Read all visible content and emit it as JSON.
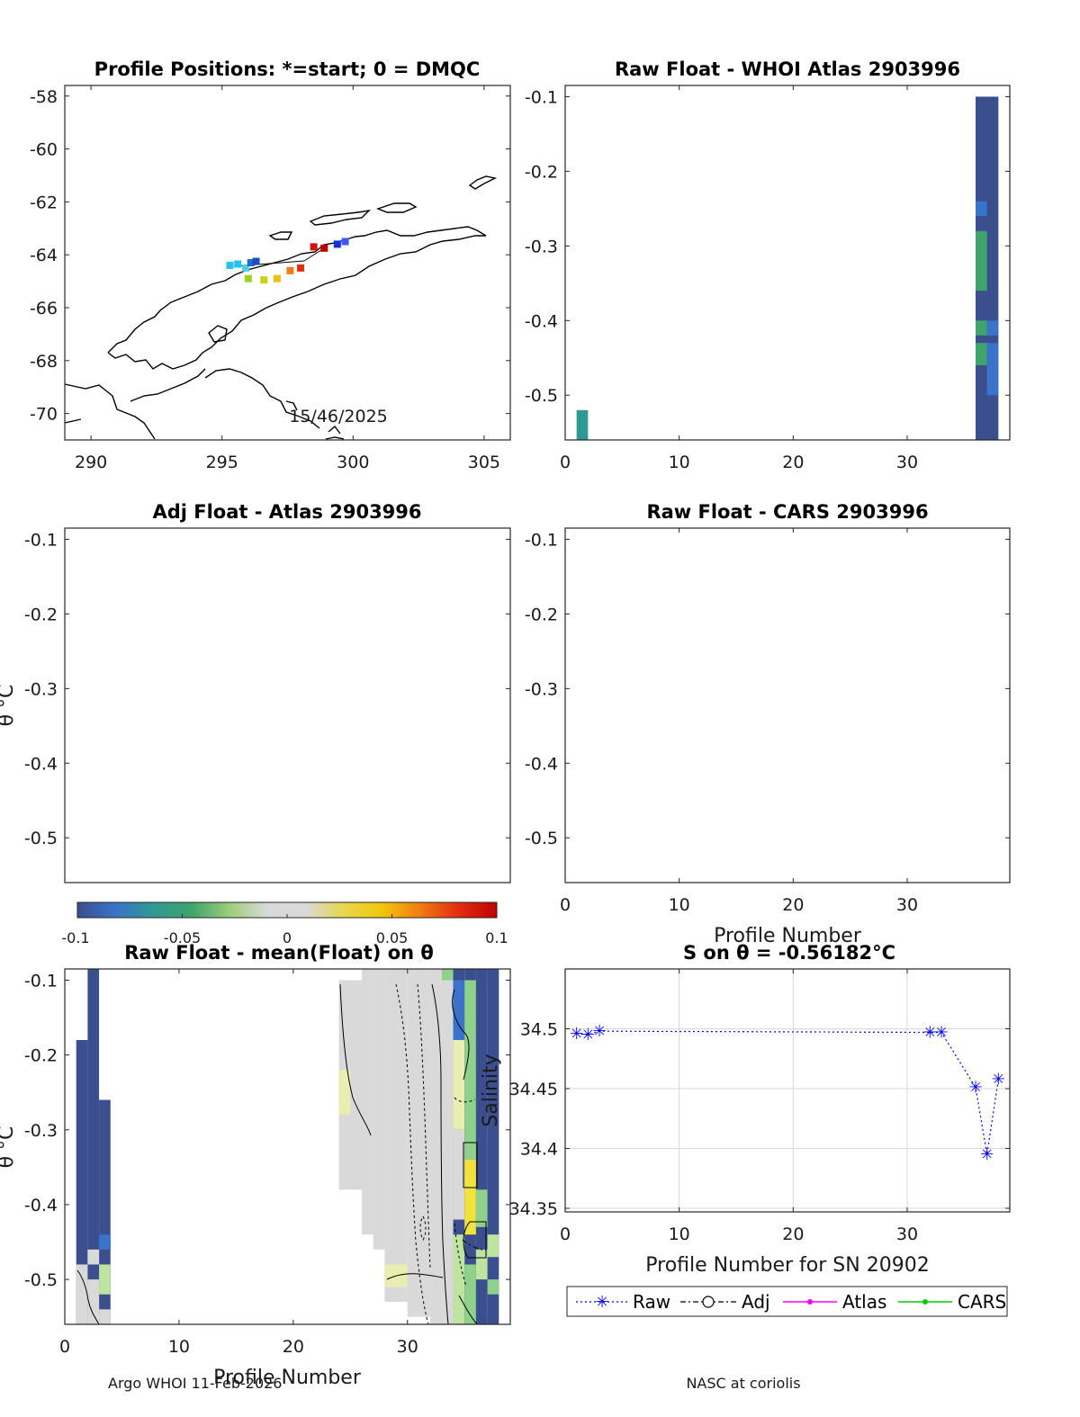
{
  "colors": {
    "raw": "#0000ff",
    "adj": "#000000",
    "atlas": "#ff00ff",
    "cars": "#00cc00",
    "dark": "#3b4e8d",
    "mid": "#3a73c9",
    "green": "#3fa36b",
    "teal": "#2f9a92",
    "lightgray": "#d9d9d9",
    "paleyellow": "#e8eeb0",
    "palegreen": "#bfe3a0",
    "lightgreen": "#8fd18a",
    "yellow": "#f2e33c"
  },
  "chart_data": [
    {
      "id": "map",
      "type": "scatter",
      "title": "Profile Positions: *=start; 0 = DMQC",
      "xlim": [
        289,
        306
      ],
      "ylim": [
        -71,
        -57.6
      ],
      "xticks": [
        290,
        295,
        300,
        305
      ],
      "yticks": [
        -58,
        -60,
        -62,
        -64,
        -66,
        -68,
        -70
      ],
      "annotation": "15/46/2025",
      "points": [
        {
          "lon": 295.3,
          "lat": -64.4,
          "color": "#22c3f0"
        },
        {
          "lon": 295.6,
          "lat": -64.35,
          "color": "#22c3f0"
        },
        {
          "lon": 295.9,
          "lat": -64.5,
          "color": "#4fd0e8"
        },
        {
          "lon": 296.1,
          "lat": -64.3,
          "color": "#1e6fd0"
        },
        {
          "lon": 296.3,
          "lat": -64.25,
          "color": "#1b4fc0"
        },
        {
          "lon": 296.0,
          "lat": -64.9,
          "color": "#9ad21c"
        },
        {
          "lon": 296.6,
          "lat": -64.95,
          "color": "#c8d414"
        },
        {
          "lon": 297.1,
          "lat": -64.9,
          "color": "#e7c010"
        },
        {
          "lon": 297.6,
          "lat": -64.6,
          "color": "#f07b10"
        },
        {
          "lon": 298.0,
          "lat": -64.5,
          "color": "#e22d10"
        },
        {
          "lon": 298.5,
          "lat": -63.7,
          "color": "#d41010"
        },
        {
          "lon": 298.9,
          "lat": -63.75,
          "color": "#c00000"
        },
        {
          "lon": 299.4,
          "lat": -63.6,
          "color": "#1030e0"
        },
        {
          "lon": 299.7,
          "lat": -63.5,
          "color": "#3f55ff"
        }
      ]
    },
    {
      "id": "raw-atlas",
      "type": "heatmap",
      "title": "Raw Float - WHOI Atlas  2903996",
      "xlim": [
        0,
        39
      ],
      "ylim": [
        -0.56,
        -0.085
      ],
      "xticks": [
        0,
        10,
        20,
        30
      ],
      "yticks": [
        -0.1,
        -0.2,
        -0.3,
        -0.4,
        -0.5
      ],
      "cells": [
        {
          "x0": 1,
          "x1": 2,
          "y0": -0.56,
          "y1": -0.52,
          "color": "#2f9a92"
        },
        {
          "x0": 36,
          "x1": 38,
          "y0": -0.56,
          "y1": -0.1,
          "color": "#3b4e8d"
        },
        {
          "x0": 36,
          "x1": 37,
          "y0": -0.26,
          "y1": -0.24,
          "color": "#3a73c9"
        },
        {
          "x0": 36,
          "x1": 37,
          "y0": -0.36,
          "y1": -0.28,
          "color": "#3fa36b"
        },
        {
          "x0": 36,
          "x1": 37,
          "y0": -0.42,
          "y1": -0.4,
          "color": "#3fa36b"
        },
        {
          "x0": 36,
          "x1": 37,
          "y0": -0.46,
          "y1": -0.43,
          "color": "#3fa36b"
        },
        {
          "x0": 37,
          "x1": 38,
          "y0": -0.42,
          "y1": -0.4,
          "color": "#3a73c9"
        },
        {
          "x0": 37,
          "x1": 38,
          "y0": -0.5,
          "y1": -0.43,
          "color": "#3a73c9"
        }
      ]
    },
    {
      "id": "adj-atlas",
      "type": "heatmap",
      "title": "Adj Float - Atlas  2903996",
      "ylabel": "θ °C",
      "ylim": [
        -0.56,
        -0.085
      ],
      "yticks": [
        -0.1,
        -0.2,
        -0.3,
        -0.4,
        -0.5
      ],
      "cells": []
    },
    {
      "id": "raw-cars",
      "type": "heatmap",
      "title": "Raw Float - CARS  2903996",
      "xlabel": "Profile Number",
      "xlim": [
        0,
        39
      ],
      "ylim": [
        -0.56,
        -0.085
      ],
      "xticks": [
        0,
        10,
        20,
        30
      ],
      "yticks": [
        -0.1,
        -0.2,
        -0.3,
        -0.4,
        -0.5
      ],
      "cells": []
    },
    {
      "id": "colorbar",
      "type": "heatmap",
      "range": [
        -0.1,
        0.1
      ],
      "ticks": [
        "-0.1",
        "-0.05",
        "0",
        "0.05",
        "0.1"
      ],
      "stops": [
        "#3b4e8d",
        "#3a73c9",
        "#2f9a92",
        "#3fa36b",
        "#9ccf7a",
        "#d9d9d9",
        "#d9d9d9",
        "#e7d84a",
        "#f2c50c",
        "#f07b10",
        "#e22d10",
        "#c00000"
      ]
    },
    {
      "id": "anomaly",
      "type": "heatmap",
      "title": "Raw Float - mean(Float) on θ",
      "ylabel": "θ °C",
      "xlabel": "Profile Number",
      "xlim": [
        0,
        39
      ],
      "ylim": [
        -0.56,
        -0.085
      ],
      "xticks": [
        0,
        10,
        20,
        30
      ],
      "yticks": [
        -0.1,
        -0.2,
        -0.3,
        -0.4,
        -0.5
      ],
      "cells": [
        {
          "x0": 1,
          "x2": 2,
          "x1": 2,
          "y0": -0.56,
          "y1": -0.18,
          "color": "#3b4e8d"
        },
        {
          "x0": 2,
          "x1": 3,
          "y0": -0.56,
          "y1": -0.085,
          "color": "#3b4e8d"
        },
        {
          "x0": 3,
          "x1": 4,
          "y0": -0.56,
          "y1": -0.26,
          "color": "#3b4e8d"
        },
        {
          "x0": 1,
          "x1": 2,
          "y0": -0.5,
          "y1": -0.48,
          "color": "#d9d9d9"
        },
        {
          "x0": 1,
          "x1": 2,
          "y0": -0.56,
          "y1": -0.5,
          "color": "#d9d9d9"
        },
        {
          "x0": 2,
          "x1": 3,
          "y0": -0.56,
          "y1": -0.5,
          "color": "#d9d9d9"
        },
        {
          "x0": 2,
          "x1": 3,
          "y0": -0.48,
          "y1": -0.46,
          "color": "#d9d9d9"
        },
        {
          "x0": 3,
          "x1": 4,
          "y0": -0.46,
          "y1": -0.44,
          "color": "#3a73c9"
        },
        {
          "x0": 3,
          "x1": 4,
          "y0": -0.52,
          "y1": -0.48,
          "color": "#bfe3a0"
        },
        {
          "x0": 3,
          "x1": 4,
          "y0": -0.56,
          "y1": -0.54,
          "color": "#d9d9d9"
        },
        {
          "x0": 24,
          "x1": 26,
          "y0": -0.38,
          "y1": -0.1,
          "color": "#d9d9d9"
        },
        {
          "x0": 24,
          "x1": 25,
          "y0": -0.28,
          "y1": -0.22,
          "color": "#e8eeb0"
        },
        {
          "x0": 26,
          "x1": 27,
          "y0": -0.44,
          "y1": -0.085,
          "color": "#d9d9d9"
        },
        {
          "x0": 27,
          "x1": 28,
          "y0": -0.46,
          "y1": -0.085,
          "color": "#d9d9d9"
        },
        {
          "x0": 28,
          "x1": 30,
          "y0": -0.53,
          "y1": -0.085,
          "color": "#d9d9d9"
        },
        {
          "x0": 28,
          "x1": 30,
          "y0": -0.51,
          "y1": -0.48,
          "color": "#e8eeb0"
        },
        {
          "x0": 30,
          "x1": 32,
          "y0": -0.55,
          "y1": -0.085,
          "color": "#d9d9d9"
        },
        {
          "x0": 32,
          "x1": 33,
          "y0": -0.56,
          "y1": -0.085,
          "color": "#d9d9d9"
        },
        {
          "x0": 33,
          "x1": 34,
          "y0": -0.56,
          "y1": -0.085,
          "color": "#d9d9d9"
        },
        {
          "x0": 33,
          "x1": 34,
          "y0": -0.1,
          "y1": -0.085,
          "color": "#8fd18a"
        },
        {
          "x0": 34,
          "x1": 35,
          "y0": -0.56,
          "y1": -0.085,
          "color": "#3b4e8d"
        },
        {
          "x0": 34,
          "x1": 35,
          "y0": -0.18,
          "y1": -0.1,
          "color": "#3a73c9"
        },
        {
          "x0": 34,
          "x1": 35,
          "y0": -0.3,
          "y1": -0.18,
          "color": "#e8eeb0"
        },
        {
          "x0": 34,
          "x1": 35,
          "y0": -0.42,
          "y1": -0.3,
          "color": "#d9d9d9"
        },
        {
          "x0": 34,
          "x1": 35,
          "y0": -0.56,
          "y1": -0.44,
          "color": "#bfe3a0"
        },
        {
          "x0": 35,
          "x1": 36,
          "y0": -0.56,
          "y1": -0.085,
          "color": "#3b4e8d"
        },
        {
          "x0": 35,
          "x1": 36,
          "y0": -0.34,
          "y1": -0.1,
          "color": "#8fd18a"
        },
        {
          "x0": 35,
          "x1": 36,
          "y0": -0.44,
          "y1": -0.34,
          "color": "#f2e33c"
        },
        {
          "x0": 35,
          "x1": 36,
          "y0": -0.56,
          "y1": -0.48,
          "color": "#8fd18a"
        },
        {
          "x0": 36,
          "x1": 37,
          "y0": -0.56,
          "y1": -0.085,
          "color": "#3b4e8d"
        },
        {
          "x0": 36,
          "x1": 37,
          "y0": -0.43,
          "y1": -0.38,
          "color": "#8fd18a"
        },
        {
          "x0": 36,
          "x1": 37,
          "y0": -0.5,
          "y1": -0.46,
          "color": "#bfe3a0"
        },
        {
          "x0": 37,
          "x1": 38,
          "y0": -0.56,
          "y1": -0.085,
          "color": "#3b4e8d"
        },
        {
          "x0": 37,
          "x1": 38,
          "y0": -0.47,
          "y1": -0.44,
          "color": "#bfe3a0"
        },
        {
          "x0": 37,
          "x1": 38,
          "y0": -0.52,
          "y1": -0.5,
          "color": "#8fd18a"
        }
      ]
    },
    {
      "id": "salinity",
      "type": "line",
      "title": "S on θ = -0.56182°C",
      "xlabel": "Profile Number for SN 20902",
      "ylabel": "Salinity",
      "xlim": [
        0,
        39
      ],
      "ylim": [
        34.347,
        34.55
      ],
      "xticks": [
        0,
        10,
        20,
        30
      ],
      "yticks": [
        34.35,
        34.4,
        34.45,
        34.5
      ],
      "yticklabels": [
        "34.35",
        "34.4",
        "34.45",
        "34.5"
      ],
      "series": [
        {
          "name": "Raw",
          "x": [
            1,
            2,
            3,
            32,
            33,
            36,
            37,
            38
          ],
          "y": [
            34.496,
            34.495,
            34.498,
            34.497,
            34.497,
            34.451,
            34.395,
            34.458
          ]
        }
      ],
      "legend": [
        "Raw",
        "Adj",
        "Atlas",
        "CARS"
      ]
    }
  ],
  "footer": {
    "left": "Argo WHOI 11-Feb-2026",
    "right": "NASC at coriolis"
  }
}
